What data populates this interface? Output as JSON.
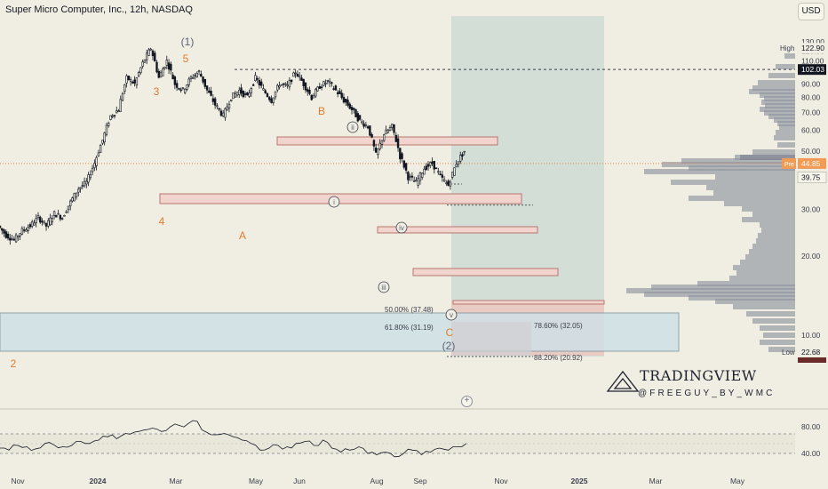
{
  "header": {
    "title": "Super Micro Computer, Inc., 12h, NASDAQ",
    "currency": "USD"
  },
  "branding": {
    "name": "TRADINGVIEW",
    "handle": "@FREEGUY_BY_WMC"
  },
  "colors": {
    "candle": "#131722",
    "zone_fill": "#f2d4cf",
    "zone_border": "#b7776f",
    "support_fill": "#cfe0e6",
    "projection_fill": "#c8d8d2",
    "profile": "#8f95a0",
    "wave_orange": "#e07b2e",
    "wave_gray": "#5d6275",
    "price_tag": "#f29b55"
  },
  "chart_data": [
    {
      "type": "candlestick",
      "title": "Super Micro Computer, Inc., 12h, NASDAQ",
      "x_axis_labels": [
        "Nov",
        "2024",
        "Mar",
        "May",
        "Jun",
        "Aug",
        "Sep",
        "Nov",
        "2025",
        "Mar",
        "May"
      ],
      "y_axis_labels": [
        "130.00",
        "120.00",
        "110.00",
        "100.00",
        "90.00",
        "80.00",
        "70.00",
        "60.00",
        "50.00",
        "40.00",
        "30.00",
        "20.00",
        "10.00"
      ],
      "ylim": [
        5,
        140
      ],
      "y_scale": "log",
      "price_labels": {
        "high_label": "High",
        "high": "122.90",
        "level": "102.03",
        "last_prefix": "Pre",
        "last": "44.85",
        "prev": "39.75",
        "low_label": "Low",
        "low": "22.68"
      },
      "price_path": [
        [
          "Nov",
          26
        ],
        [
          "",
          24
        ],
        [
          "",
          23
        ],
        [
          "",
          25
        ],
        [
          "",
          26
        ],
        [
          "",
          28
        ],
        [
          "",
          26
        ],
        [
          "",
          29
        ],
        [
          "",
          28
        ],
        [
          "",
          32
        ],
        [
          "",
          36
        ],
        [
          "2024",
          38
        ],
        [
          "",
          45
        ],
        [
          "",
          55
        ],
        [
          "",
          68
        ],
        [
          "",
          72
        ],
        [
          "",
          95
        ],
        [
          "",
          90
        ],
        [
          "",
          108
        ],
        [
          "Mar",
          122.9
        ],
        [
          "",
          95
        ],
        [
          "",
          110
        ],
        [
          "",
          90
        ],
        [
          "",
          85
        ],
        [
          "",
          95
        ],
        [
          "",
          100
        ],
        [
          "",
          85
        ],
        [
          "",
          75
        ],
        [
          "",
          68
        ],
        [
          "",
          80
        ],
        [
          "",
          85
        ],
        [
          "May",
          80
        ],
        [
          "",
          95
        ],
        [
          "",
          85
        ],
        [
          "",
          78
        ],
        [
          "",
          90
        ],
        [
          "Jun",
          88
        ],
        [
          "",
          100
        ],
        [
          "",
          90
        ],
        [
          "",
          80
        ],
        [
          "",
          88
        ],
        [
          "",
          92
        ],
        [
          "",
          85
        ],
        [
          "",
          78
        ],
        [
          "",
          72
        ],
        [
          "",
          65
        ],
        [
          "",
          62
        ],
        [
          "Aug",
          48
        ],
        [
          "",
          58
        ],
        [
          "",
          62
        ],
        [
          "",
          48
        ],
        [
          "Sep",
          40
        ],
        [
          "",
          38
        ],
        [
          "",
          43
        ],
        [
          "",
          45
        ],
        [
          "",
          40
        ],
        [
          "",
          37
        ],
        [
          "",
          45
        ],
        [
          "",
          50
        ]
      ],
      "wave_labels": [
        {
          "text": "(1)",
          "x": "Mar",
          "y": 128
        },
        {
          "text": "5",
          "x": "Mar",
          "y": 122
        },
        {
          "text": "3",
          "x": "2024",
          "y": 110
        },
        {
          "text": "4",
          "x": "2024",
          "y": 67
        },
        {
          "text": "2",
          "x": "Nov",
          "y": 21
        },
        {
          "text": "A",
          "x": "May",
          "y": 62
        },
        {
          "text": "B",
          "x": "Jun",
          "y": 105
        },
        {
          "text": "C",
          "x": "Sep",
          "y": 26
        },
        {
          "text": "(2)",
          "x": "Sep",
          "y": 24
        },
        {
          "text": "ii",
          "x": "Jun",
          "y": 101
        },
        {
          "text": "i",
          "x": "Jun",
          "y": 77
        },
        {
          "text": "iv",
          "x": "Aug",
          "y": 64
        },
        {
          "text": "iii",
          "x": "Aug",
          "y": 42
        },
        {
          "text": "v",
          "x": "Sep",
          "y": 36
        }
      ],
      "fib_levels": [
        {
          "label": "50.00% (37.48)",
          "value": 37.48
        },
        {
          "label": "61.80% (31.19)",
          "value": 31.19
        },
        {
          "label": "78.60% (32.05)",
          "value": 32.05
        },
        {
          "label": "88.20% (20.92)",
          "value": 20.92
        }
      ]
    },
    {
      "type": "line",
      "title": "",
      "y_axis_labels": [
        "80.00",
        "40.00"
      ],
      "ylim": [
        20,
        100
      ],
      "values": [
        48,
        45,
        52,
        50,
        47,
        55,
        53,
        50,
        52,
        58,
        55,
        60,
        65,
        62,
        70,
        72,
        75,
        78,
        73,
        80,
        82,
        85,
        88,
        72,
        68,
        70,
        65,
        60,
        55,
        45,
        48,
        52,
        50,
        55,
        58,
        52,
        60,
        48,
        42,
        45,
        50,
        40,
        38,
        42,
        35,
        40,
        45,
        38,
        42,
        48,
        45,
        50,
        55
      ]
    }
  ]
}
